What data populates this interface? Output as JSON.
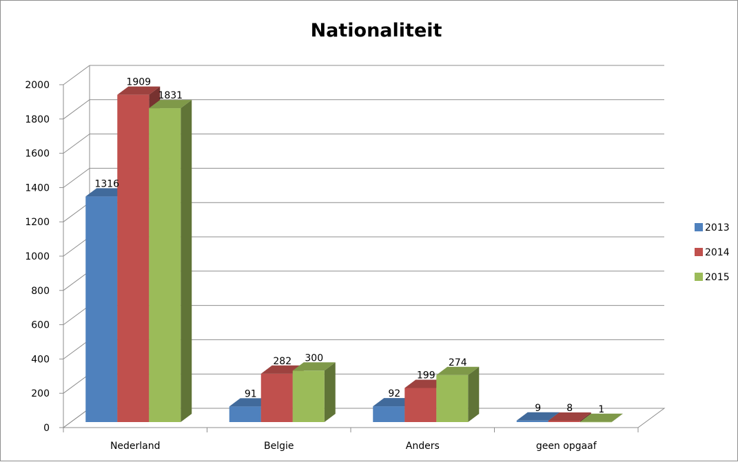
{
  "chart_data": {
    "type": "bar",
    "title": "Nationaliteit",
    "categories": [
      "Nederland",
      "Belgie",
      "Anders",
      "geen opgaaf"
    ],
    "series": [
      {
        "name": "2013",
        "values": [
          1316,
          91,
          92,
          9
        ],
        "color": "#4f81bd"
      },
      {
        "name": "2014",
        "values": [
          1909,
          282,
          199,
          8
        ],
        "color": "#c0504d"
      },
      {
        "name": "2015",
        "values": [
          1831,
          300,
          274,
          1
        ],
        "color": "#9bbb59"
      }
    ],
    "ylim": [
      0,
      2000
    ],
    "yticks": [
      "0",
      "200",
      "400",
      "600",
      "800",
      "1000",
      "1200",
      "1400",
      "1600",
      "1800",
      "2000"
    ],
    "grid": true,
    "legend": "right",
    "style": "3d-clustered-column"
  }
}
